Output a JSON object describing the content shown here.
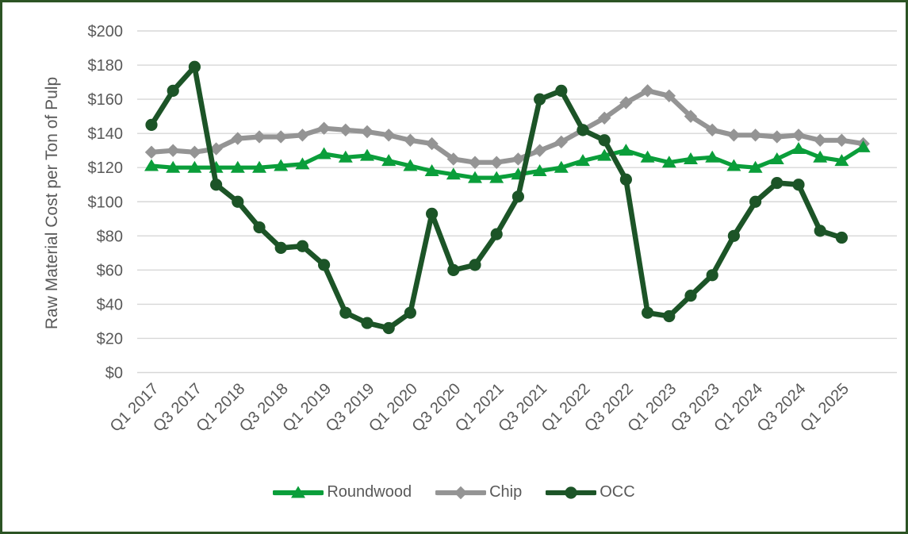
{
  "figure": {
    "border_color": "#2c5424",
    "background_color": "#ffffff",
    "gridline_color": "#d7d7d7",
    "tick_label_color": "#595959",
    "legend_label_color": "#595959"
  },
  "chart_data": {
    "type": "line",
    "title": "",
    "xlabel": "",
    "ylabel": "Raw Material Cost per Ton of Pulp",
    "ylim": [
      0,
      200
    ],
    "y_tick_step": 20,
    "y_ticks": [
      "$0",
      "$20",
      "$40",
      "$60",
      "$80",
      "$100",
      "$120",
      "$140",
      "$160",
      "$180",
      "$200"
    ],
    "grid": "horizontal",
    "legend_position": "bottom",
    "x_tick_every": 2,
    "x_tick_labels": [
      "Q1 2017",
      "Q3 2017",
      "Q1 2018",
      "Q3 2018",
      "Q1 2019",
      "Q3 2019",
      "Q1 2020",
      "Q3 2020",
      "Q1 2021",
      "Q3 2021",
      "Q1 2022",
      "Q3 2022",
      "Q1 2023",
      "Q3 2023",
      "Q1 2024",
      "Q3 2024",
      "Q1 2025"
    ],
    "categories": [
      "Q1 2017",
      "Q2 2017",
      "Q3 2017",
      "Q4 2017",
      "Q1 2018",
      "Q2 2018",
      "Q3 2018",
      "Q4 2018",
      "Q1 2019",
      "Q2 2019",
      "Q3 2019",
      "Q4 2019",
      "Q1 2020",
      "Q2 2020",
      "Q3 2020",
      "Q4 2020",
      "Q1 2021",
      "Q2 2021",
      "Q3 2021",
      "Q4 2021",
      "Q1 2022",
      "Q2 2022",
      "Q3 2022",
      "Q4 2022",
      "Q1 2023",
      "Q2 2023",
      "Q3 2023",
      "Q4 2023",
      "Q1 2024",
      "Q2 2024",
      "Q3 2024",
      "Q4 2024",
      "Q1 2025",
      "Q2 2025"
    ],
    "series": [
      {
        "name": "Roundwood",
        "color": "#0a9e3a",
        "marker": "triangle",
        "values": [
          121,
          120,
          120,
          120,
          120,
          120,
          121,
          122,
          128,
          126,
          127,
          124,
          121,
          118,
          116,
          114,
          114,
          116,
          118,
          120,
          124,
          127,
          130,
          126,
          123,
          125,
          126,
          121,
          120,
          125,
          131,
          126,
          124,
          132
        ]
      },
      {
        "name": "Chip",
        "color": "#949494",
        "marker": "diamond",
        "values": [
          129,
          130,
          129,
          131,
          137,
          138,
          138,
          139,
          143,
          142,
          141,
          139,
          136,
          134,
          125,
          123,
          123,
          125,
          130,
          135,
          142,
          149,
          158,
          165,
          162,
          150,
          142,
          139,
          139,
          138,
          139,
          136,
          136,
          134
        ]
      },
      {
        "name": "OCC",
        "color": "#1c5427",
        "marker": "circle",
        "values": [
          145,
          165,
          179,
          110,
          100,
          85,
          73,
          74,
          63,
          35,
          29,
          26,
          35,
          93,
          60,
          63,
          81,
          103,
          160,
          165,
          142,
          136,
          113,
          35,
          33,
          45,
          57,
          80,
          100,
          111,
          110,
          83,
          79,
          null
        ]
      }
    ]
  }
}
